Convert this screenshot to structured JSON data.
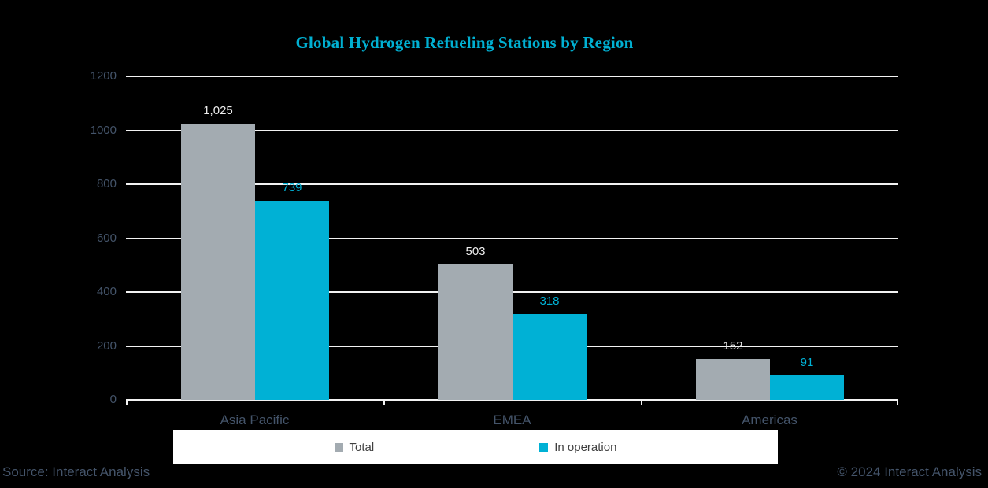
{
  "chart_data": {
    "type": "bar",
    "title": "Global Hydrogen Refueling Stations by Region",
    "categories": [
      "Asia Pacific",
      "EMEA",
      "Americas"
    ],
    "series": [
      {
        "name": "Total",
        "values": [
          1025,
          503,
          152
        ],
        "labels": [
          "1,025",
          "503",
          "152"
        ],
        "color": "#a3abb1",
        "label_color": "#eeeeee"
      },
      {
        "name": "In operation",
        "values": [
          739,
          318,
          91
        ],
        "labels": [
          "739",
          "318",
          "91"
        ],
        "color": "#00b1d5",
        "label_color": "#00b1d5"
      }
    ],
    "xlabel": "",
    "ylabel": "",
    "ylim": [
      0,
      1200
    ],
    "y_ticks": [
      0,
      200,
      400,
      600,
      800,
      1000,
      1200
    ],
    "grid": true,
    "legend_position": "bottom"
  },
  "footer": {
    "source": "Source: Interact Analysis",
    "copyright": "© 2024 Interact Analysis"
  },
  "colors": {
    "background": "#000000",
    "title": "#00b0d2",
    "axis_text": "#44546a",
    "gridline": "#f2f2f2",
    "gray_bar": "#a3abb1",
    "cyan_bar": "#00b1d5",
    "legend_background": "#ffffff",
    "legend_text": "#3f3f3f"
  }
}
